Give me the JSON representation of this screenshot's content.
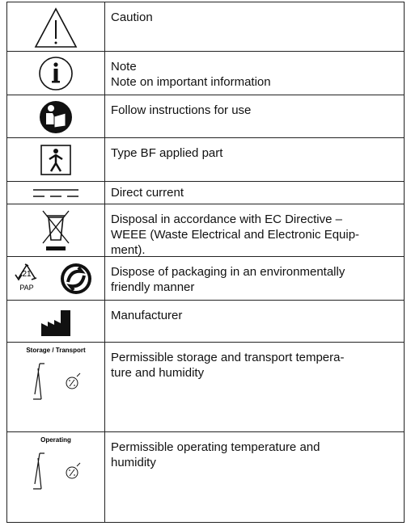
{
  "rows": [
    {
      "lines": [
        "Caution"
      ]
    },
    {
      "lines": [
        "Note",
        "Note on important information"
      ]
    },
    {
      "lines": [
        "Follow instructions for use"
      ]
    },
    {
      "lines": [
        "Type BF applied part"
      ]
    },
    {
      "lines": [
        "Direct current"
      ]
    },
    {
      "lines": [
        "Disposal in accordance with EC Directive –",
        "WEEE (Waste Electrical and Electronic Equip-",
        "ment)."
      ]
    },
    {
      "lines": [
        "Dispose of packaging in an environmentally",
        "friendly manner"
      ],
      "icon_labels": [
        "21",
        "PAP"
      ]
    },
    {
      "lines": [
        "Manufacturer"
      ]
    },
    {
      "lines": [
        "Permissible storage and transport tempera-",
        "ture and humidity"
      ],
      "icon_label": "Storage / Transport"
    },
    {
      "lines": [
        "Permissible operating temperature and",
        "humidity"
      ],
      "icon_label": "Operating"
    }
  ]
}
